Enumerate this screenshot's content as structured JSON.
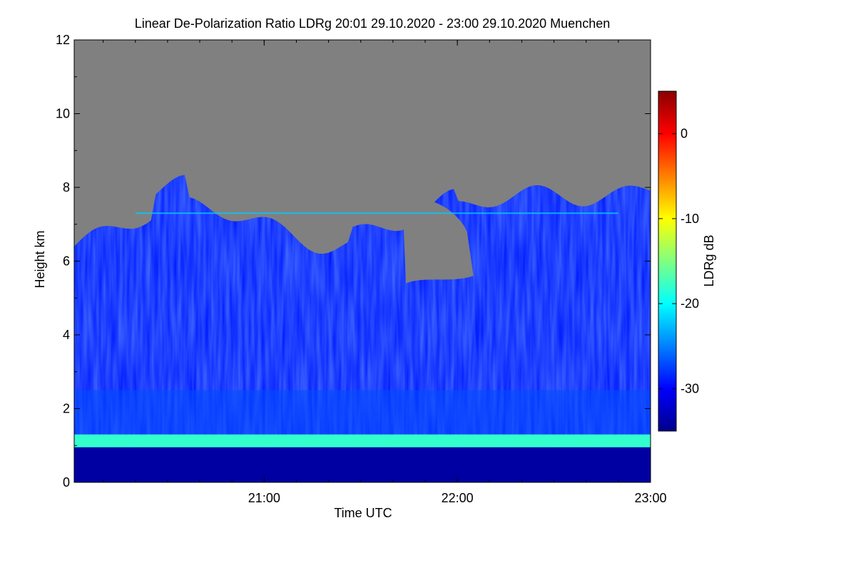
{
  "chart_data": {
    "type": "heatmap",
    "title": "Linear De-Polarization Ratio LDRg   20:01 29.10.2020 - 23:00 29.10.2020 Muenchen",
    "xlabel": "Time UTC",
    "ylabel": "Height km",
    "x_range": [
      "20:01",
      "23:00"
    ],
    "x_ticks": [
      {
        "value": "21:00",
        "label": "21:00"
      },
      {
        "value": "22:00",
        "label": "22:00"
      },
      {
        "value": "23:00",
        "label": "23:00"
      }
    ],
    "x_minor_tick_minutes": 10,
    "ylim": [
      0,
      12
    ],
    "y_ticks": [
      0,
      2,
      4,
      6,
      8,
      10,
      12
    ],
    "y_tick_labels": [
      "0",
      "2",
      "4",
      "6",
      "8",
      "10",
      "12"
    ],
    "colorbar": {
      "label": "LDRg dB",
      "range": [
        -35,
        5
      ],
      "ticks": [
        0,
        -10,
        -20,
        -30
      ],
      "tick_labels": [
        "0",
        "-10",
        "-20",
        "-30"
      ],
      "colormap": [
        "#00008b",
        "#0000ff",
        "#0080ff",
        "#00ffff",
        "#80ff80",
        "#ffff00",
        "#ff8000",
        "#ff0000",
        "#8b0000"
      ]
    },
    "no_data_color": "#808080",
    "field_values": {
      "surface_layer_0_to_0.95km_dB": -34,
      "bright_band_approx_1.1km_dB": -18,
      "lower_atmosphere_1.3_to_2.5km_dB": -27,
      "mid_atmosphere_2.5_to_6.5km_dB": -29,
      "cloud_top_km_start": 6.4,
      "cloud_top_km_end": 8.0,
      "stripe_near_7.3km_dB": -22
    }
  }
}
